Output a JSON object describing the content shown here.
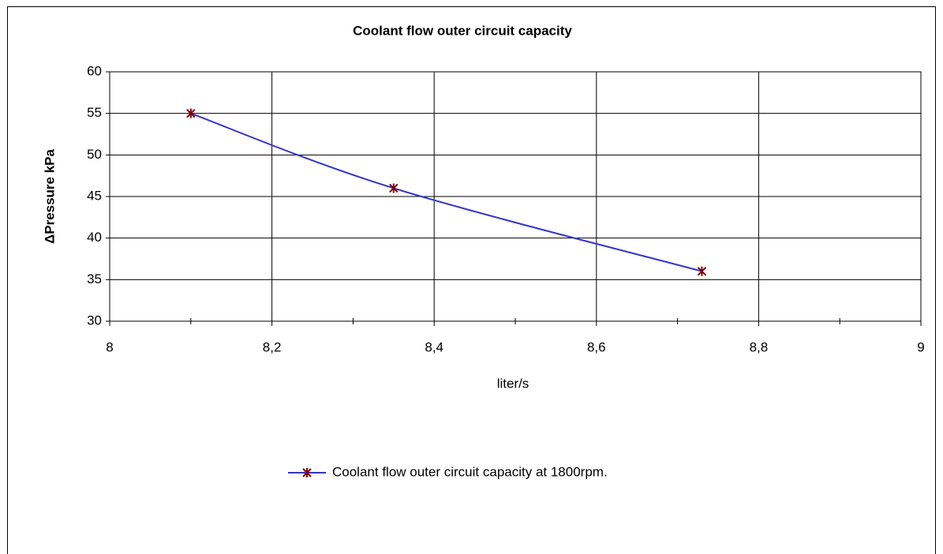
{
  "chart_data": {
    "type": "line",
    "title": "Coolant flow outer circuit capacity",
    "xlabel": "liter/s",
    "ylabel": "ΔPressure  kPa",
    "x": [
      8.1,
      8.35,
      8.73
    ],
    "series": [
      {
        "name": "Coolant flow outer circuit capacity at 1800rpm.",
        "color": "#3333cc",
        "marker_color": "#800000",
        "values": [
          55,
          46,
          36
        ]
      }
    ],
    "xlim": [
      8,
      9
    ],
    "xticks": [
      8,
      {
        "value": 8.2,
        "label": "8,2"
      },
      {
        "value": 8.4,
        "label": "8,4"
      },
      {
        "value": 8.6,
        "label": "8,6"
      },
      {
        "value": 8.8,
        "label": "8,8"
      },
      9
    ],
    "xminorticks": [
      8.1,
      8.3,
      8.5,
      8.7,
      8.9
    ],
    "ylim": [
      30,
      60
    ],
    "yticks": [
      30,
      35,
      40,
      45,
      50,
      55,
      60
    ],
    "grid": true,
    "legend": "bottom",
    "smooth": true
  }
}
